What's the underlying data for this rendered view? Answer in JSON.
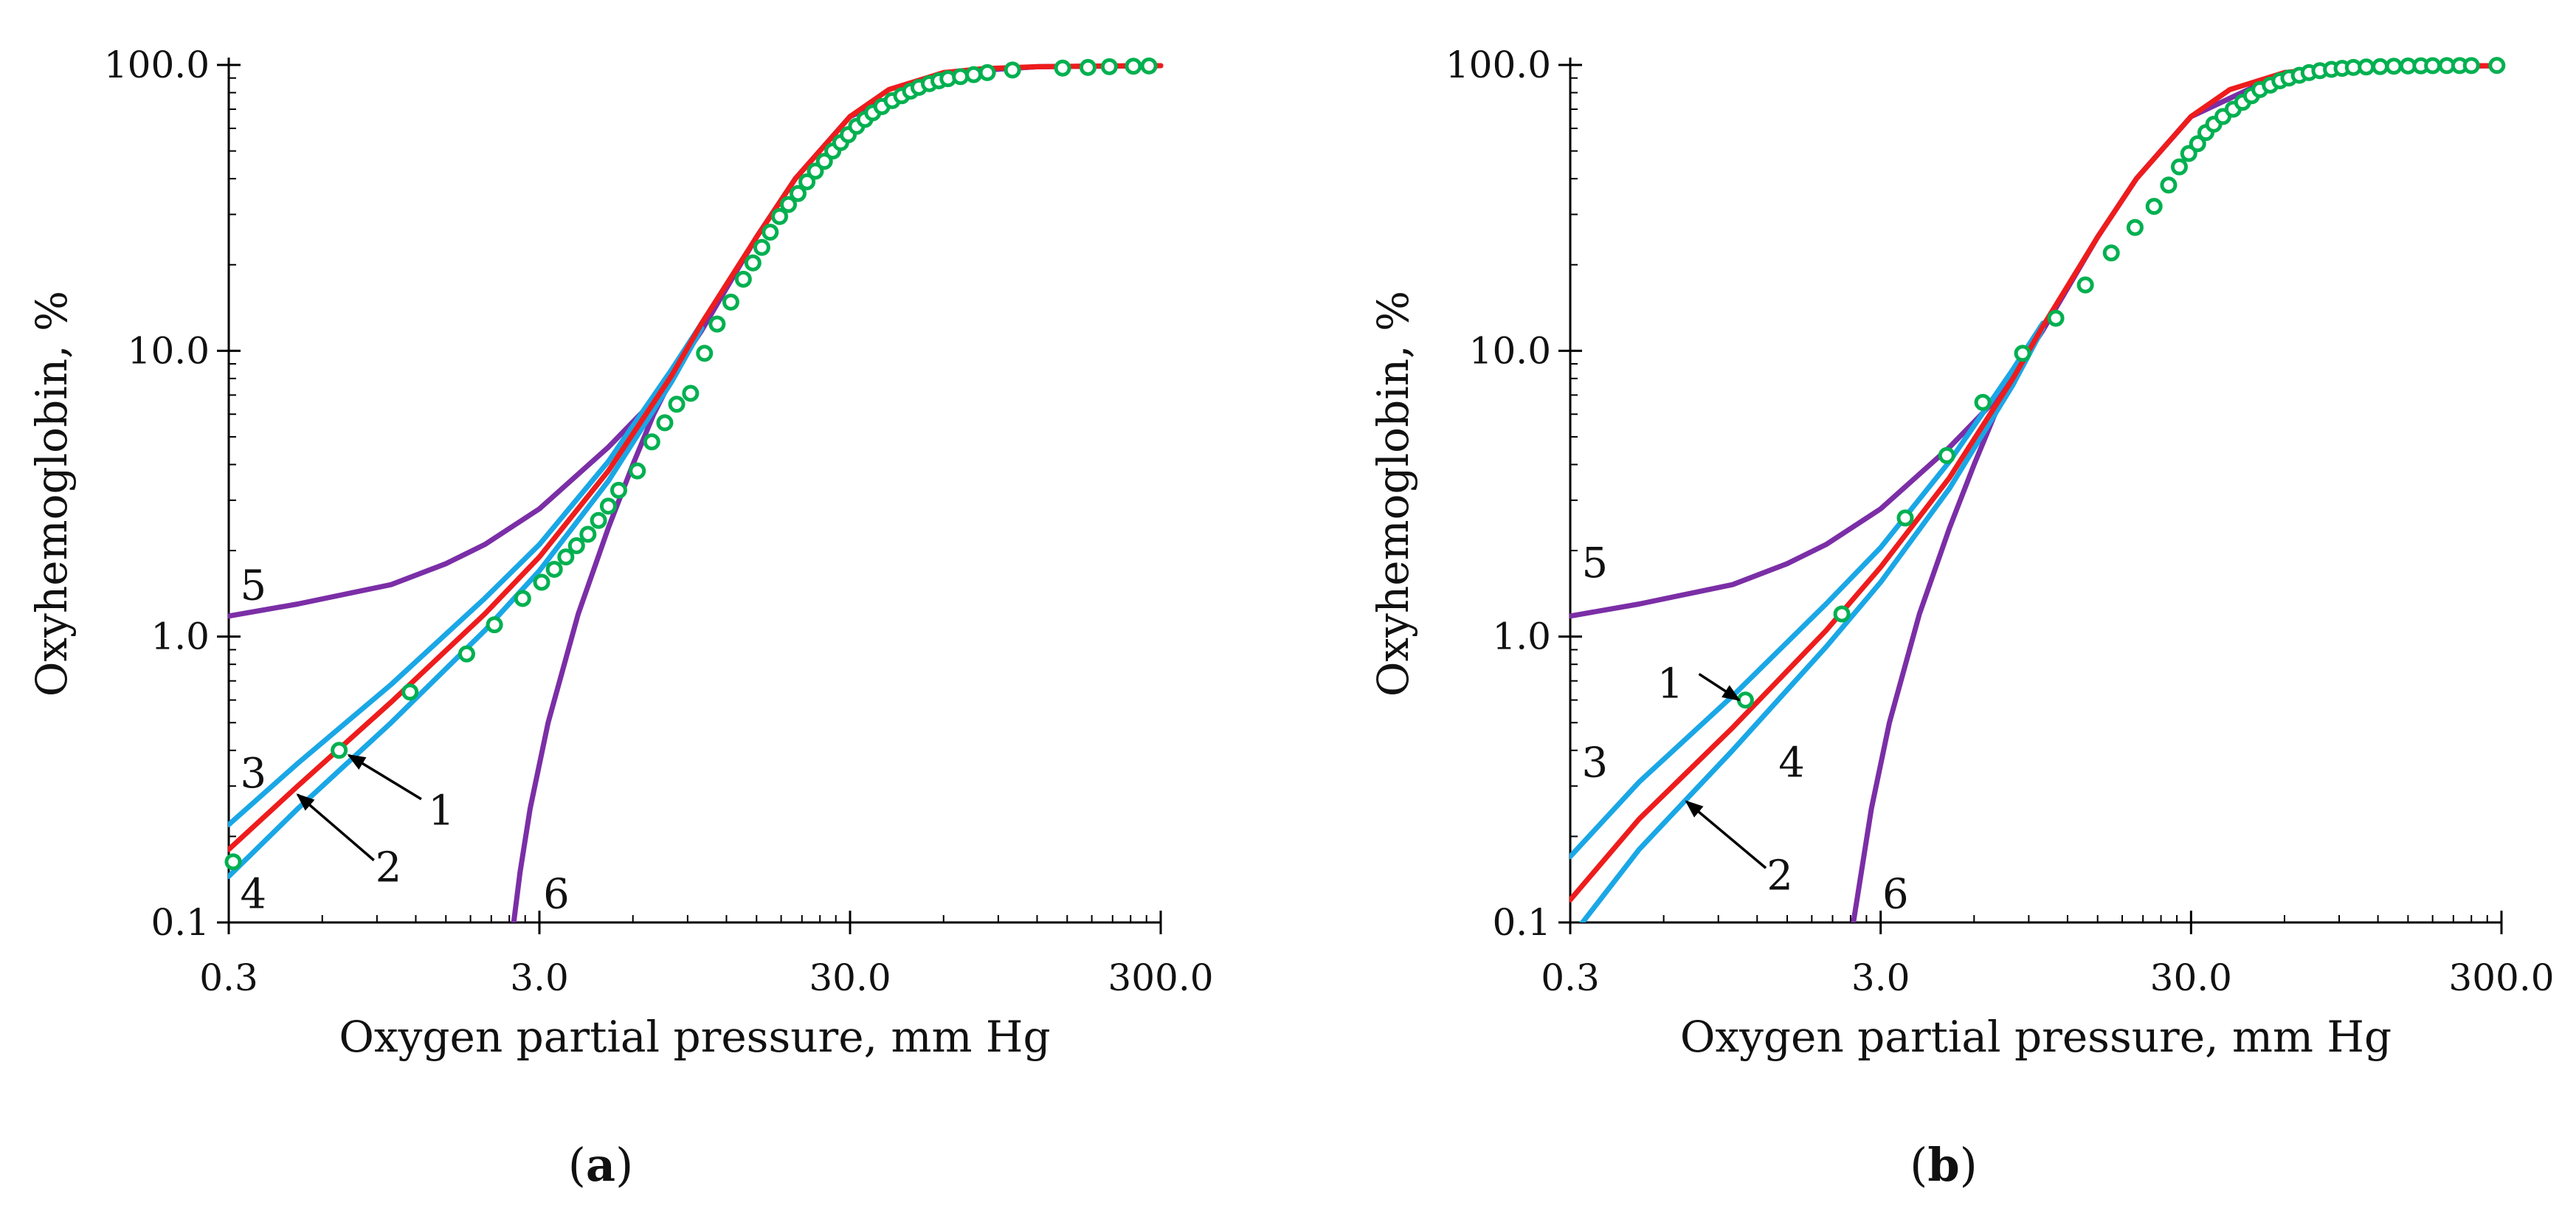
{
  "figure": {
    "panels": [
      "a",
      "b"
    ]
  },
  "colors": {
    "curve_1": "#00b050",
    "curve_2": "#ee1c1c",
    "curves_3_4": "#1aa7e6",
    "curves_5_6": "#7b2ea6",
    "axis": "#000000"
  },
  "chart_data": [
    {
      "type": "line",
      "panel_label": "a",
      "xlabel": "Oxygen partial pressure, mm Hg",
      "ylabel": "Oxyhemoglobin, %",
      "xscale": "log",
      "yscale": "log",
      "xlim": [
        0.3,
        300.0
      ],
      "ylim": [
        0.1,
        100.0
      ],
      "xticks": [
        "0.3",
        "3.0",
        "30.0",
        "300.0"
      ],
      "yticks": [
        "0.1",
        "1.0",
        "10.0",
        "100.0"
      ],
      "curve_labels": [
        "1",
        "2",
        "3",
        "4",
        "5",
        "6"
      ],
      "series": [
        {
          "name": "2",
          "role": "model",
          "x": [
            0.3,
            0.5,
            1,
            2,
            3,
            5,
            8,
            10,
            15,
            20,
            30,
            40,
            60,
            80,
            120,
            200,
            300
          ],
          "y": [
            0.18,
            0.3,
            0.59,
            1.2,
            1.9,
            3.8,
            8.2,
            12.5,
            25,
            40,
            66,
            82,
            94,
            97,
            98.6,
            99.2,
            99.4
          ]
        },
        {
          "name": "3",
          "role": "bound_upper",
          "x": [
            0.3,
            0.5,
            1,
            2,
            3,
            5,
            8,
            10
          ],
          "y": [
            0.22,
            0.36,
            0.68,
            1.36,
            2.1,
            4.1,
            8.6,
            12.5
          ]
        },
        {
          "name": "4",
          "role": "bound_lower",
          "x": [
            0.3,
            0.5,
            1,
            2,
            3,
            5,
            8,
            10
          ],
          "y": [
            0.145,
            0.25,
            0.5,
            1.05,
            1.7,
            3.5,
            7.8,
            12.0
          ]
        },
        {
          "name": "5",
          "role": "limit_curve",
          "x": [
            0.3,
            0.5,
            1,
            1.5,
            2,
            3,
            5,
            7,
            8,
            10,
            15,
            20,
            30,
            60,
            120,
            300
          ],
          "y": [
            1.18,
            1.3,
            1.52,
            1.8,
            2.1,
            2.8,
            4.6,
            6.7,
            8.2,
            11.8,
            25,
            40,
            66,
            94,
            98.6,
            99.4
          ]
        },
        {
          "name": "6",
          "role": "limit_curve",
          "x": [
            2.48,
            2.6,
            2.8,
            3.2,
            4,
            5,
            6,
            7,
            8,
            10,
            15,
            20,
            30,
            60,
            120,
            300
          ],
          "y": [
            0.1,
            0.15,
            0.25,
            0.5,
            1.2,
            2.4,
            4.0,
            6.0,
            8.0,
            12.0,
            25,
            40,
            66,
            94,
            98.6,
            99.4
          ]
        },
        {
          "name": "1",
          "role": "experimental_points",
          "x": [
            0.31,
            0.68,
            1.15,
            1.75,
            2.15,
            2.65,
            3.05,
            3.35,
            3.65,
            3.95,
            4.3,
            4.65,
            5.0,
            5.4,
            6.2,
            6.9,
            7.6,
            8.3,
            9.2,
            10.2,
            11.2,
            12.4,
            13.6,
            14.6,
            15.6,
            16.6,
            17.8,
            19.0,
            20.4,
            21.8,
            23.2,
            24.8,
            26.4,
            28.0,
            29.6,
            31.5,
            33.5,
            35.5,
            38.0,
            41.0,
            44.0,
            47.0,
            50.0,
            54.0,
            58.0,
            62.0,
            68.0,
            75.0,
            83.0,
            100,
            145,
            175,
            205,
            245,
            275
          ],
          "y": [
            0.163,
            0.4,
            0.64,
            0.87,
            1.1,
            1.36,
            1.55,
            1.72,
            1.9,
            2.08,
            2.28,
            2.55,
            2.86,
            3.25,
            3.8,
            4.8,
            5.6,
            6.5,
            7.1,
            9.8,
            12.4,
            14.8,
            17.8,
            20.3,
            23.0,
            26.0,
            29.5,
            32.5,
            35.5,
            39.0,
            42.5,
            46.0,
            50.0,
            53.5,
            57.0,
            61.0,
            64.5,
            68.0,
            71.5,
            75.0,
            78.0,
            81.0,
            83.5,
            86.0,
            88.0,
            89.5,
            91.0,
            92.5,
            94.0,
            96.0,
            97.5,
            98.0,
            98.6,
            99.0,
            99.2
          ]
        }
      ]
    },
    {
      "type": "line",
      "panel_label": "b",
      "xlabel": "Oxygen partial pressure, mm Hg",
      "ylabel": "Oxyhemoglobin, %",
      "xscale": "log",
      "yscale": "log",
      "xlim": [
        0.3,
        300.0
      ],
      "ylim": [
        0.1,
        100.0
      ],
      "xticks": [
        "0.3",
        "3.0",
        "30.0",
        "300.0"
      ],
      "yticks": [
        "0.1",
        "1.0",
        "10.0",
        "100.0"
      ],
      "curve_labels": [
        "1",
        "2",
        "3",
        "4",
        "5",
        "6"
      ],
      "series": [
        {
          "name": "2",
          "role": "model",
          "x": [
            0.3,
            0.5,
            1,
            2,
            3,
            5,
            8,
            10,
            15,
            20,
            30,
            40,
            60,
            80,
            120,
            200,
            300
          ],
          "y": [
            0.12,
            0.23,
            0.48,
            1.05,
            1.75,
            3.6,
            8.0,
            12.2,
            25,
            40,
            66,
            82,
            94,
            97,
            98.6,
            99.2,
            99.4
          ]
        },
        {
          "name": "3",
          "role": "bound_upper",
          "x": [
            0.3,
            0.5,
            1,
            2,
            3,
            5,
            8,
            10
          ],
          "y": [
            0.17,
            0.31,
            0.62,
            1.3,
            2.05,
            4.1,
            8.6,
            12.5
          ]
        },
        {
          "name": "4",
          "role": "bound_lower",
          "x": [
            0.3,
            0.5,
            1,
            2,
            3,
            5,
            8,
            10
          ],
          "y": [
            0.088,
            0.18,
            0.4,
            0.92,
            1.55,
            3.3,
            7.6,
            12.0
          ]
        },
        {
          "name": "5",
          "role": "limit_curve",
          "x": [
            0.3,
            0.5,
            1,
            1.5,
            2,
            3,
            5,
            7,
            8,
            10,
            15,
            20,
            30,
            60,
            120,
            300
          ],
          "y": [
            1.18,
            1.3,
            1.52,
            1.8,
            2.1,
            2.8,
            4.6,
            6.7,
            8.2,
            11.8,
            25,
            40,
            66,
            94,
            98.6,
            99.4
          ]
        },
        {
          "name": "6",
          "role": "limit_curve",
          "x": [
            2.45,
            2.6,
            2.8,
            3.2,
            4,
            5,
            6,
            7,
            8,
            10,
            15,
            20,
            30,
            60,
            120,
            300
          ],
          "y": [
            0.1,
            0.15,
            0.25,
            0.5,
            1.2,
            2.4,
            4.0,
            6.0,
            8.0,
            12.0,
            25,
            40,
            66,
            94,
            98.6,
            99.4
          ]
        },
        {
          "name": "1",
          "role": "experimental_points",
          "x": [
            1.1,
            2.25,
            3.6,
            4.9,
            6.4,
            8.6,
            11.0,
            13.7,
            16.6,
            19.8,
            22.8,
            25.4,
            27.5,
            29.5,
            31.5,
            33.5,
            35.5,
            38.0,
            41.0,
            44.0,
            47.0,
            50.0,
            54.0,
            58.0,
            62.0,
            67.0,
            72.0,
            78.0,
            85.0,
            92.0,
            100,
            110,
            122,
            135,
            150,
            165,
            180,
            200,
            220,
            240,
            290
          ],
          "y": [
            0.6,
            1.2,
            2.6,
            4.3,
            6.6,
            9.8,
            13.0,
            17.0,
            22.0,
            27.0,
            32.0,
            38.0,
            44.0,
            49.0,
            53.0,
            58.0,
            62.0,
            66.0,
            70.0,
            74.0,
            78.0,
            82.0,
            85.0,
            88.0,
            90.0,
            92.0,
            94.0,
            95.5,
            96.5,
            97.3,
            98.0,
            98.4,
            98.7,
            99.0,
            99.2,
            99.3,
            99.4,
            99.5,
            99.5,
            99.5,
            99.6
          ]
        }
      ]
    }
  ]
}
